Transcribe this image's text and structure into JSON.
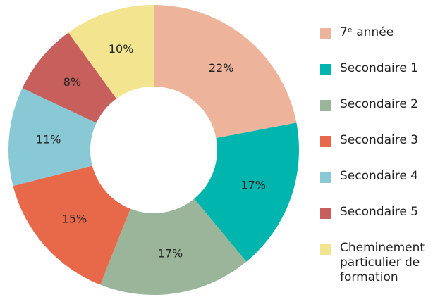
{
  "chart_data": {
    "type": "donut",
    "categories": [
      "7ᵉ année",
      "Secondaire 1",
      "Secondaire 2",
      "Secondaire 3",
      "Secondaire 4",
      "Secondaire 5",
      "Cheminement particulier de formation"
    ],
    "values": [
      22,
      17,
      17,
      15,
      11,
      8,
      10
    ],
    "value_labels": [
      "22%",
      "17%",
      "17%",
      "15%",
      "11%",
      "8%",
      "10%"
    ],
    "colors": [
      "#edb39b",
      "#00b5ad",
      "#9ab59a",
      "#e8684a",
      "#88c9d5",
      "#c7605c",
      "#f3e48f"
    ],
    "legend": "right"
  }
}
